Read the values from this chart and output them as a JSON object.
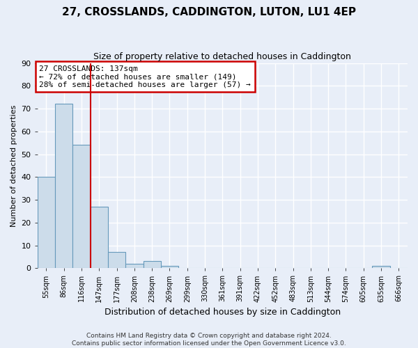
{
  "title": "27, CROSSLANDS, CADDINGTON, LUTON, LU1 4EP",
  "subtitle": "Size of property relative to detached houses in Caddington",
  "xlabel": "Distribution of detached houses by size in Caddington",
  "ylabel": "Number of detached properties",
  "bin_labels": [
    "55sqm",
    "86sqm",
    "116sqm",
    "147sqm",
    "177sqm",
    "208sqm",
    "238sqm",
    "269sqm",
    "299sqm",
    "330sqm",
    "361sqm",
    "391sqm",
    "422sqm",
    "452sqm",
    "483sqm",
    "513sqm",
    "544sqm",
    "574sqm",
    "605sqm",
    "635sqm",
    "666sqm"
  ],
  "bar_values": [
    40,
    72,
    54,
    27,
    7,
    2,
    3,
    1,
    0,
    0,
    0,
    0,
    0,
    0,
    0,
    0,
    0,
    0,
    0,
    1,
    0
  ],
  "bar_color": "#ccdcea",
  "bar_edge_color": "#6699bb",
  "annotation_text_line1": "27 CROSSLANDS: 137sqm",
  "annotation_text_line2": "← 72% of detached houses are smaller (149)",
  "annotation_text_line3": "28% of semi-detached houses are larger (57) →",
  "annotation_box_color": "#ffffff",
  "annotation_border_color": "#cc0000",
  "vline_color": "#cc0000",
  "vline_x_index": 3,
  "ylim": [
    0,
    90
  ],
  "yticks": [
    0,
    10,
    20,
    30,
    40,
    50,
    60,
    70,
    80,
    90
  ],
  "background_color": "#e8eef8",
  "plot_background": "#e8eef8",
  "grid_color": "#ffffff",
  "footer_line1": "Contains HM Land Registry data © Crown copyright and database right 2024.",
  "footer_line2": "Contains public sector information licensed under the Open Government Licence v3.0."
}
